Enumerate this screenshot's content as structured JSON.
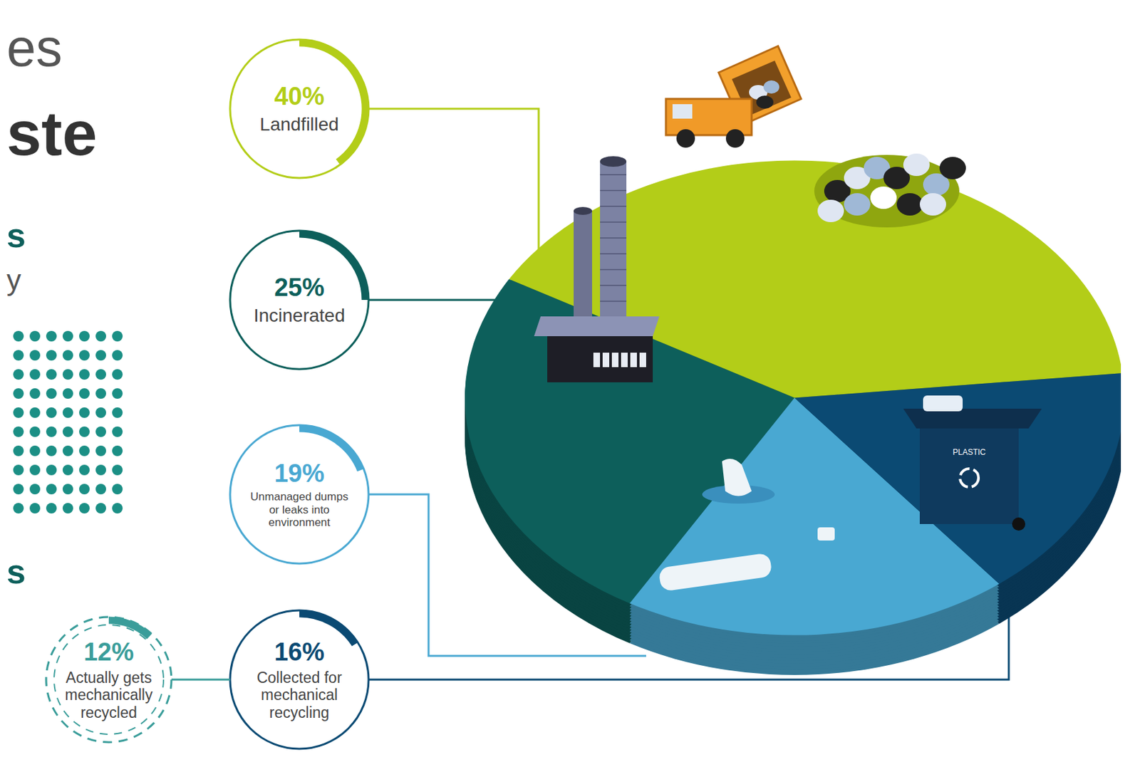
{
  "chart_data": {
    "type": "pie",
    "title_fragments": [
      "es",
      "ste"
    ],
    "text_fragments": [
      "s",
      "y",
      "s"
    ],
    "categories": [
      "Landfilled",
      "Incinerated",
      "Unmanaged dumps or leaks into environment",
      "Collected for mechanical recycling"
    ],
    "values": [
      40,
      25,
      19,
      16
    ],
    "value_labels": [
      "40%",
      "25%",
      "19%",
      "16%"
    ],
    "colors": [
      "#b3cd18",
      "#0d5f5b",
      "#49a8d2",
      "#0b4a73"
    ],
    "data_labels": true,
    "legend": false,
    "callout": {
      "label": "Actually gets mechanically recycled",
      "value": 12,
      "value_label": "12%",
      "color": "#3a9d9a"
    },
    "bin_label": "PLASTIC"
  }
}
